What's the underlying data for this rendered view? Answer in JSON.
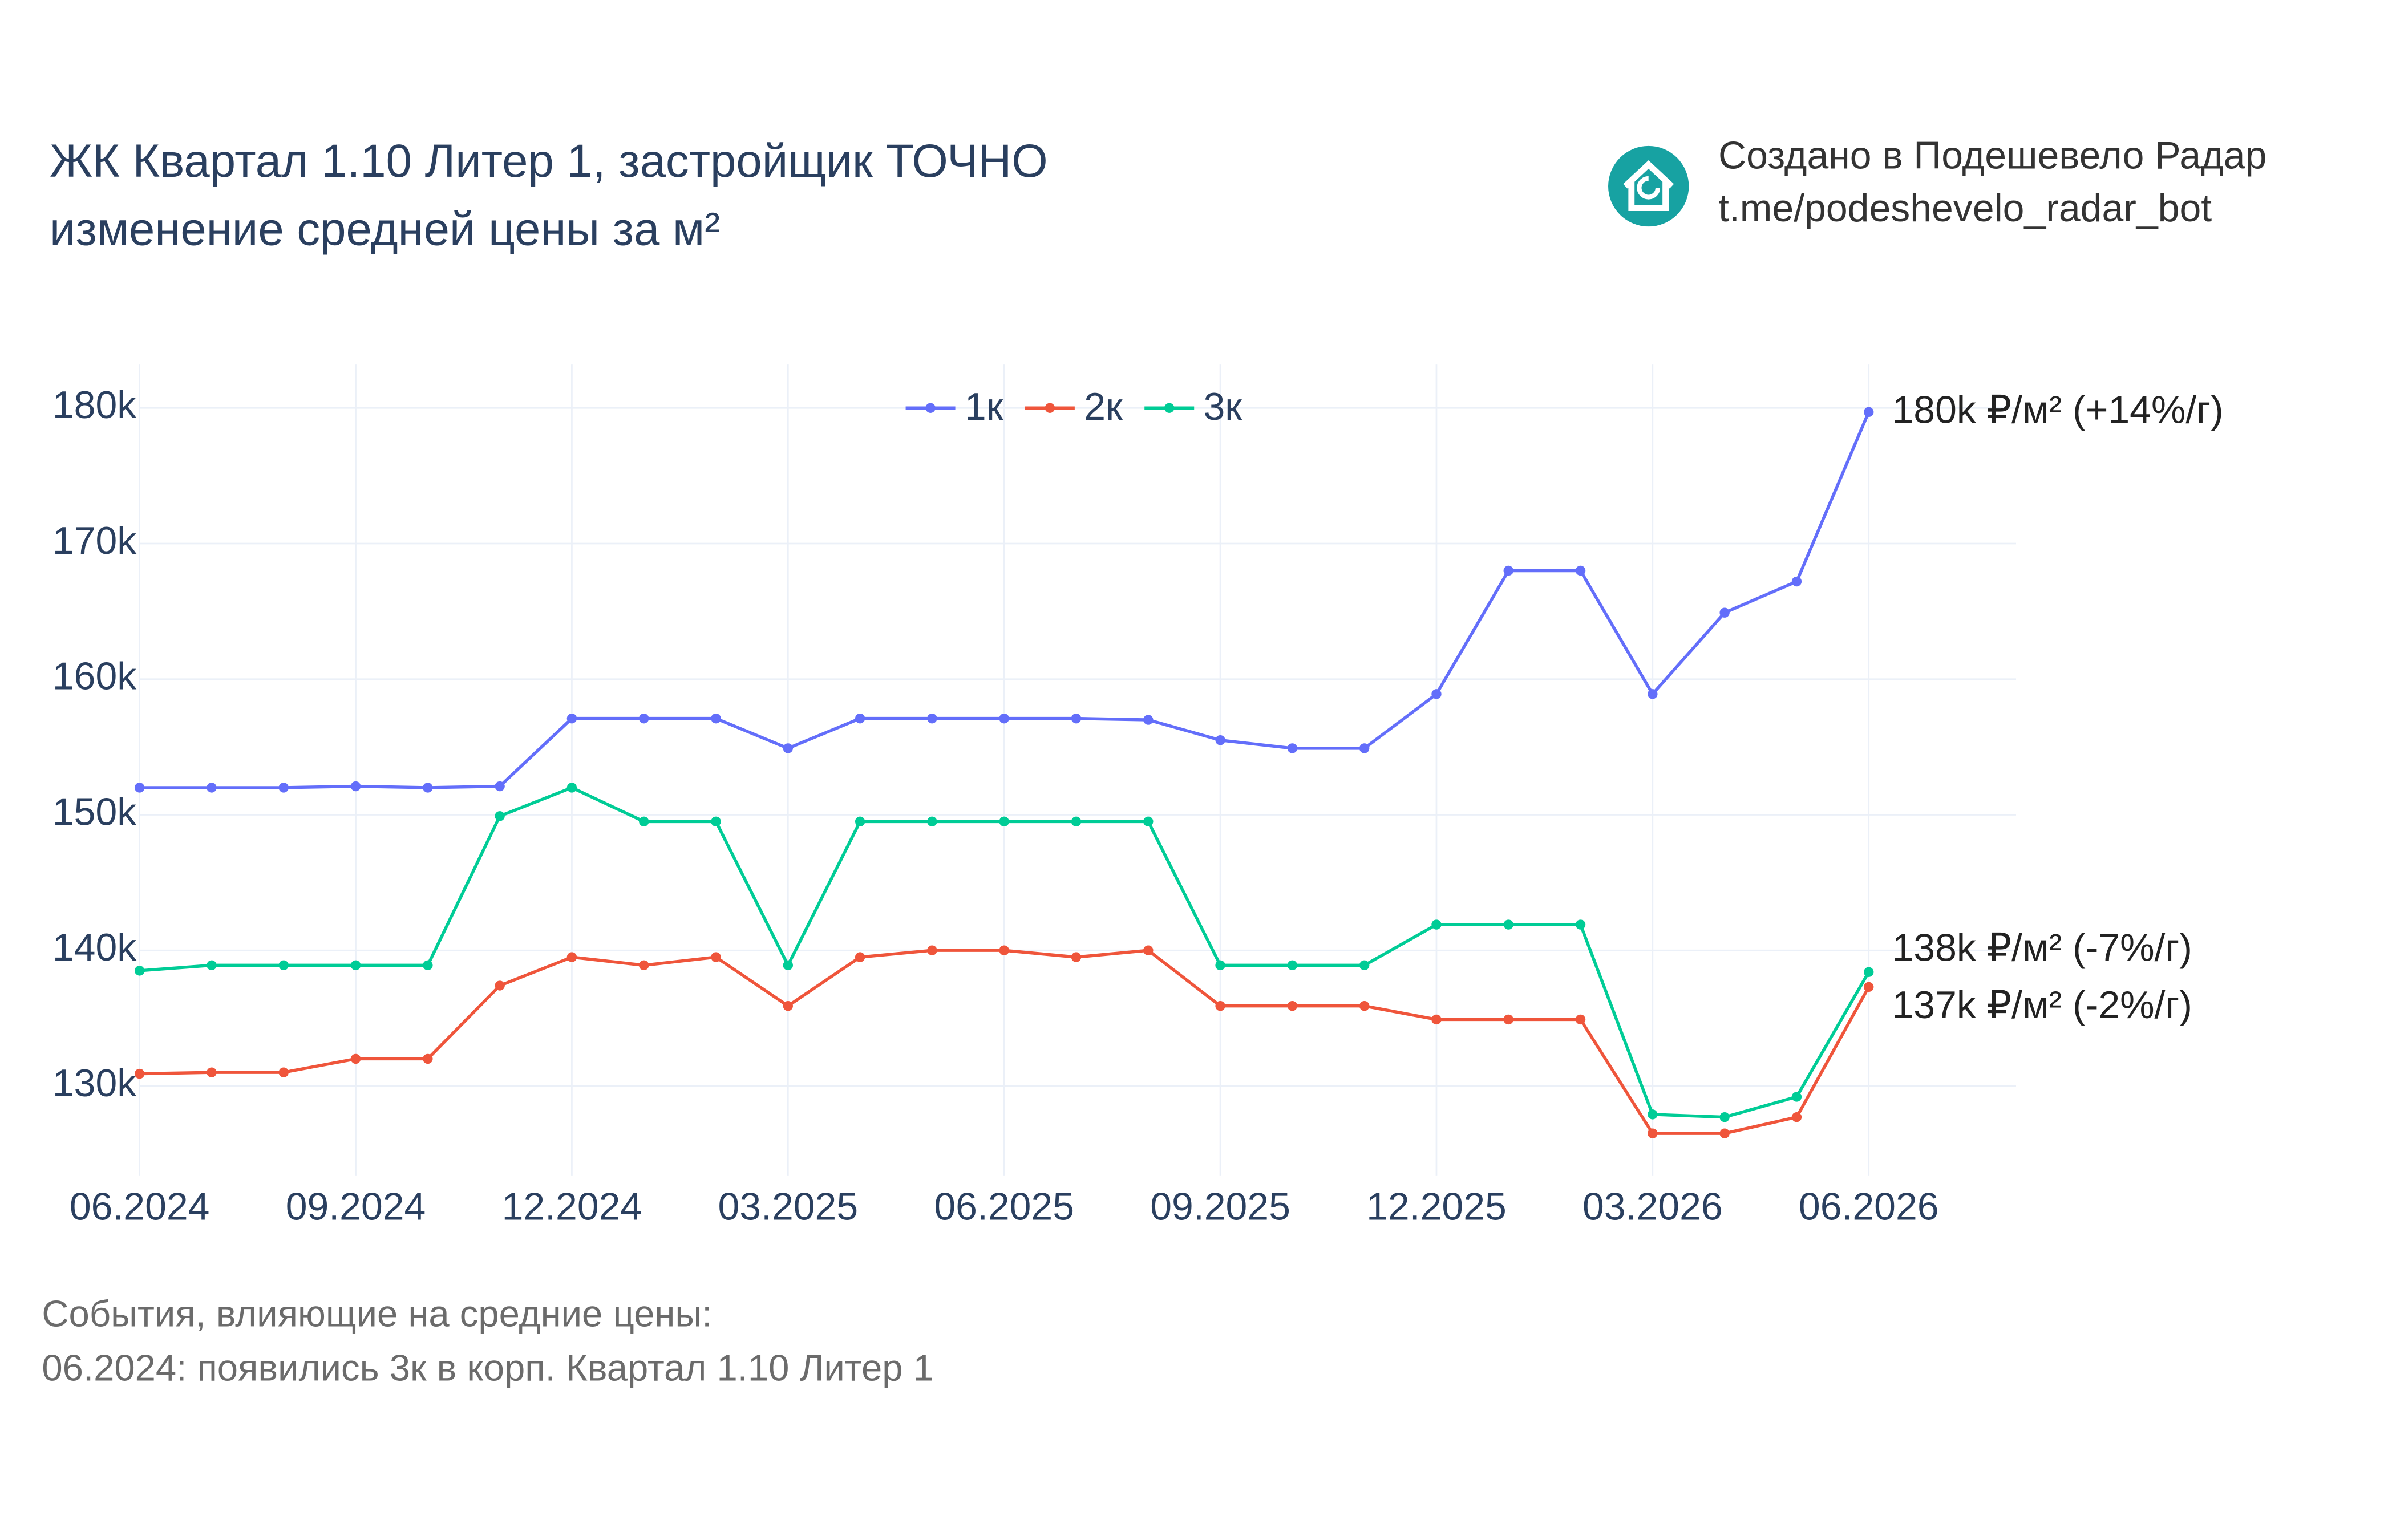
{
  "chart_data": {
    "type": "line",
    "title": "ЖК Квартал 1.10 Литер 1, застройщик ТОЧНО",
    "subtitle": "изменение средней цены за м²",
    "credit": [
      "Создано в Подешевело Радар",
      "t.me/podeshevelo_radar_bot"
    ],
    "notes": [
      "События, влияющие на средние цены:",
      "06.2024: появились 3к в корп. Квартал 1.10 Литер 1"
    ],
    "categories": [
      "06.2024",
      null,
      null,
      "09.2024",
      null,
      null,
      "12.2024",
      null,
      null,
      "03.2025",
      null,
      null,
      "06.2025",
      null,
      null,
      "09.2025",
      null,
      null,
      "12.2025",
      null,
      null,
      "03.2026",
      null,
      null,
      "06.2026"
    ],
    "ylim": [
      123400,
      183200
    ],
    "yticks": [
      {
        "value": 130000,
        "label": "130k"
      },
      {
        "value": 140000,
        "label": "140k"
      },
      {
        "value": 150000,
        "label": "150k"
      },
      {
        "value": 160000,
        "label": "160k"
      },
      {
        "value": 170000,
        "label": "170k"
      },
      {
        "value": 180000,
        "label": "180k"
      }
    ],
    "grid": true,
    "legend": "top",
    "series": [
      {
        "name": "1к",
        "color": "#636efa",
        "end_label": "180k ₽/м² (+14%/г)",
        "values": [
          152000,
          152000,
          152000,
          152100,
          152000,
          152100,
          157100,
          157100,
          157100,
          154900,
          157100,
          157100,
          157100,
          157100,
          157000,
          155500,
          154900,
          154900,
          158900,
          168000,
          168000,
          158900,
          164900,
          167200,
          179700
        ]
      },
      {
        "name": "2к",
        "color": "#ef553b",
        "end_label": "137k ₽/м² (-2%/г)",
        "values": [
          130900,
          131000,
          131000,
          132000,
          132000,
          137400,
          139500,
          138900,
          139500,
          135900,
          139500,
          140000,
          140000,
          139500,
          140000,
          135900,
          135900,
          135900,
          134900,
          134900,
          134900,
          126500,
          126500,
          127700,
          137300
        ]
      },
      {
        "name": "3к",
        "color": "#00cc96",
        "end_label": "138k ₽/м² (-7%/г)",
        "values": [
          138500,
          138900,
          138900,
          138900,
          138900,
          149900,
          152000,
          149500,
          149500,
          138900,
          149500,
          149500,
          149500,
          149500,
          149500,
          138900,
          138900,
          138900,
          141900,
          141900,
          141900,
          127900,
          127700,
          129200,
          138400
        ]
      }
    ]
  }
}
